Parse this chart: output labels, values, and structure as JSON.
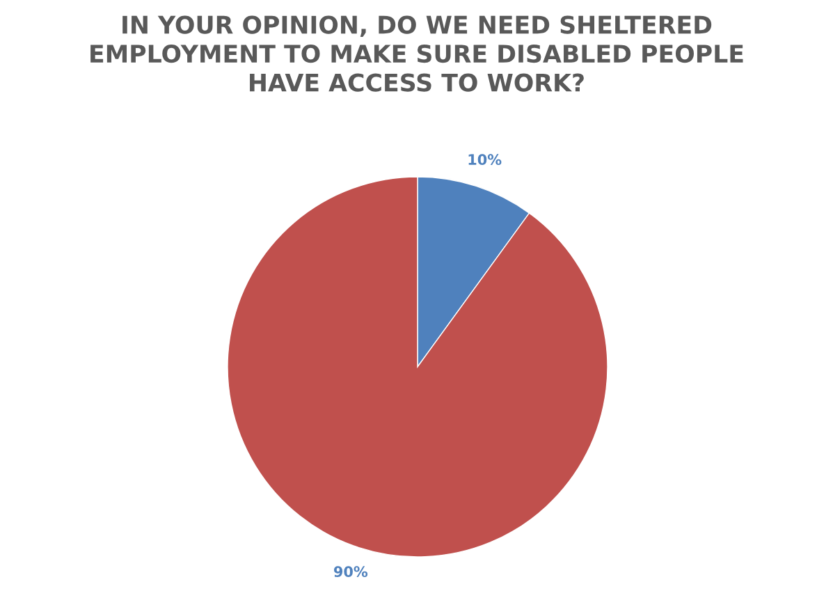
{
  "chart_data": {
    "type": "pie",
    "title": "IN YOUR OPINION, DO WE NEED SHELTERED\nEMPLOYMENT TO MAKE SURE DISABLED PEOPLE\nHAVE ACCESS TO WORK?",
    "categories": [
      null,
      null
    ],
    "values": [
      10,
      90
    ],
    "colors": [
      "#4f81bd",
      "#c0504d"
    ],
    "value_labels": [
      "10%",
      "90%"
    ],
    "legend": false
  }
}
